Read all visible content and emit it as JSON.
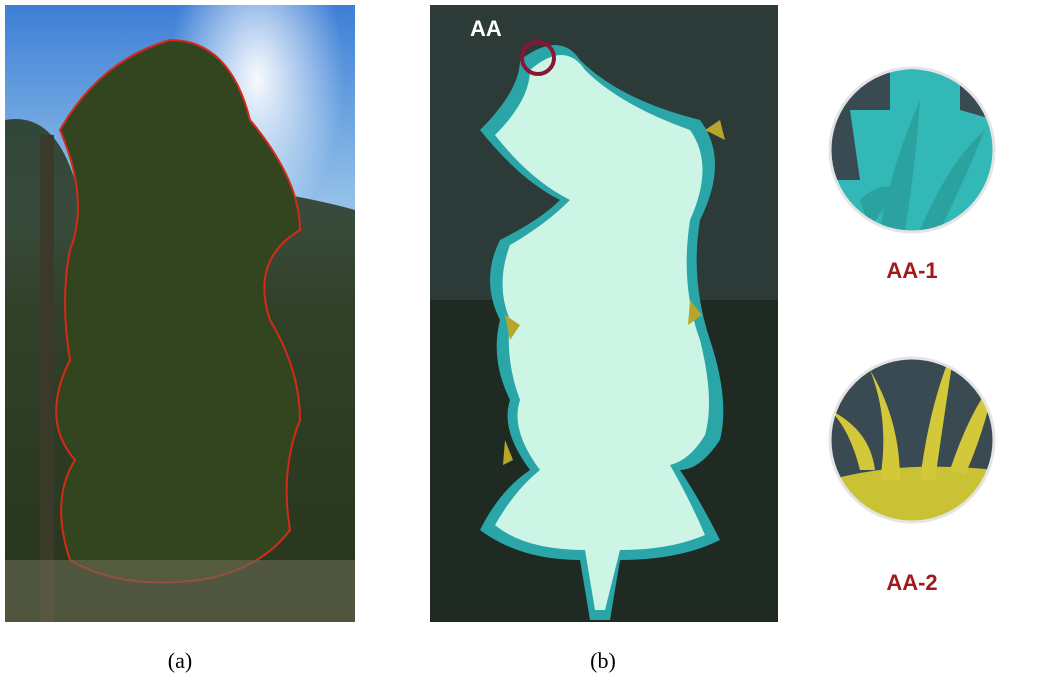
{
  "panels": [
    {
      "label": "(a)"
    },
    {
      "label": "(b)",
      "annotation": "AA"
    }
  ],
  "zoom_insets": [
    {
      "label": "AA-1"
    },
    {
      "label": "AA-2"
    }
  ]
}
